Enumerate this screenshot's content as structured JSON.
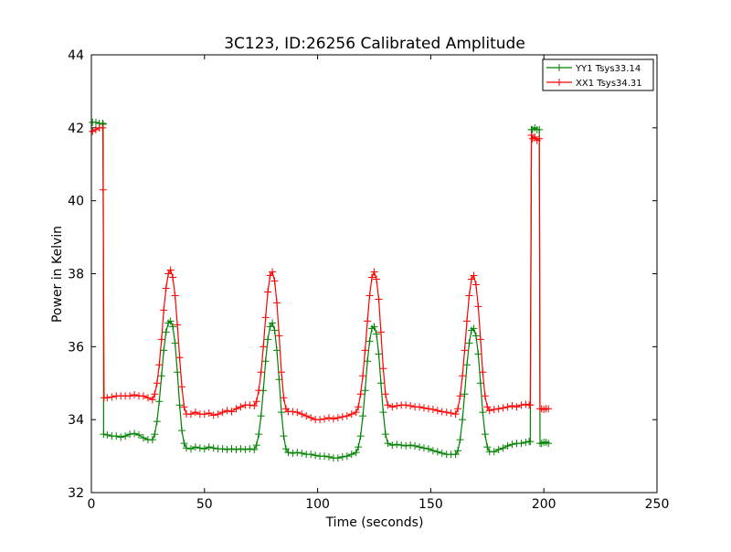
{
  "chart_data": {
    "type": "line",
    "title": "3C123, ID:26256 Calibrated Amplitude",
    "xlabel": "Time (seconds)",
    "ylabel": "Power in Kelvin",
    "xlim": [
      0,
      250
    ],
    "ylim": [
      32,
      44
    ],
    "xticks": [
      0,
      50,
      100,
      150,
      200,
      250
    ],
    "yticks": [
      32,
      34,
      36,
      38,
      40,
      42,
      44
    ],
    "grid": false,
    "legend_position": "top-right",
    "marker": "plus",
    "series": [
      {
        "name": "YY1 Tsys33.14",
        "color": "#008000",
        "points": [
          [
            0.5,
            42.15
          ],
          [
            2,
            42.15
          ],
          [
            3.5,
            42.12
          ],
          [
            5,
            42.12
          ],
          [
            5.2,
            42.1
          ],
          [
            5.4,
            33.6
          ],
          [
            7,
            33.58
          ],
          [
            9,
            33.55
          ],
          [
            11,
            33.55
          ],
          [
            13,
            33.52
          ],
          [
            15,
            33.55
          ],
          [
            17,
            33.6
          ],
          [
            19,
            33.62
          ],
          [
            21,
            33.58
          ],
          [
            23,
            33.5
          ],
          [
            25,
            33.45
          ],
          [
            27,
            33.45
          ],
          [
            28,
            33.6
          ],
          [
            29,
            33.95
          ],
          [
            30,
            34.5
          ],
          [
            31,
            35.2
          ],
          [
            32,
            35.9
          ],
          [
            33,
            36.4
          ],
          [
            34,
            36.65
          ],
          [
            35,
            36.7
          ],
          [
            36,
            36.55
          ],
          [
            37,
            36.1
          ],
          [
            38,
            35.3
          ],
          [
            39,
            34.4
          ],
          [
            40,
            33.7
          ],
          [
            41,
            33.35
          ],
          [
            42,
            33.22
          ],
          [
            44,
            33.2
          ],
          [
            46,
            33.25
          ],
          [
            48,
            33.22
          ],
          [
            50,
            33.2
          ],
          [
            52,
            33.25
          ],
          [
            54,
            33.22
          ],
          [
            56,
            33.2
          ],
          [
            58,
            33.2
          ],
          [
            60,
            33.18
          ],
          [
            62,
            33.2
          ],
          [
            64,
            33.18
          ],
          [
            66,
            33.2
          ],
          [
            68,
            33.18
          ],
          [
            70,
            33.2
          ],
          [
            72,
            33.18
          ],
          [
            73,
            33.3
          ],
          [
            74,
            33.6
          ],
          [
            75,
            34.1
          ],
          [
            76,
            34.8
          ],
          [
            77,
            35.6
          ],
          [
            78,
            36.2
          ],
          [
            79,
            36.55
          ],
          [
            80,
            36.65
          ],
          [
            81,
            36.45
          ],
          [
            82,
            35.9
          ],
          [
            83,
            35.1
          ],
          [
            84,
            34.2
          ],
          [
            85,
            33.55
          ],
          [
            86,
            33.2
          ],
          [
            87,
            33.1
          ],
          [
            89,
            33.08
          ],
          [
            91,
            33.1
          ],
          [
            93,
            33.08
          ],
          [
            95,
            33.05
          ],
          [
            97,
            33.05
          ],
          [
            99,
            33.02
          ],
          [
            101,
            33.0
          ],
          [
            103,
            33.0
          ],
          [
            105,
            32.98
          ],
          [
            107,
            32.95
          ],
          [
            109,
            32.95
          ],
          [
            111,
            32.98
          ],
          [
            113,
            33.0
          ],
          [
            115,
            33.05
          ],
          [
            117,
            33.1
          ],
          [
            118,
            33.25
          ],
          [
            119,
            33.55
          ],
          [
            120,
            34.1
          ],
          [
            121,
            34.8
          ],
          [
            122,
            35.6
          ],
          [
            123,
            36.15
          ],
          [
            124,
            36.5
          ],
          [
            125,
            36.55
          ],
          [
            126,
            36.35
          ],
          [
            127,
            35.8
          ],
          [
            128,
            35.0
          ],
          [
            129,
            34.2
          ],
          [
            130,
            33.6
          ],
          [
            131,
            33.35
          ],
          [
            133,
            33.3
          ],
          [
            135,
            33.32
          ],
          [
            137,
            33.3
          ],
          [
            139,
            33.28
          ],
          [
            141,
            33.3
          ],
          [
            143,
            33.28
          ],
          [
            145,
            33.25
          ],
          [
            147,
            33.22
          ],
          [
            149,
            33.2
          ],
          [
            151,
            33.15
          ],
          [
            153,
            33.12
          ],
          [
            155,
            33.08
          ],
          [
            157,
            33.05
          ],
          [
            159,
            33.05
          ],
          [
            161,
            33.05
          ],
          [
            162,
            33.15
          ],
          [
            163,
            33.45
          ],
          [
            164,
            34.0
          ],
          [
            165,
            34.7
          ],
          [
            166,
            35.5
          ],
          [
            167,
            36.1
          ],
          [
            168,
            36.45
          ],
          [
            169,
            36.5
          ],
          [
            170,
            36.3
          ],
          [
            171,
            35.8
          ],
          [
            172,
            35.0
          ],
          [
            173,
            34.2
          ],
          [
            174,
            33.6
          ],
          [
            175,
            33.25
          ],
          [
            176,
            33.12
          ],
          [
            178,
            33.12
          ],
          [
            180,
            33.18
          ],
          [
            182,
            33.22
          ],
          [
            184,
            33.28
          ],
          [
            186,
            33.32
          ],
          [
            188,
            33.35
          ],
          [
            190,
            33.35
          ],
          [
            192,
            33.38
          ],
          [
            193.5,
            33.4
          ],
          [
            194,
            33.4
          ],
          [
            194.5,
            41.95
          ],
          [
            195,
            41.95
          ],
          [
            196,
            42.0
          ],
          [
            197,
            41.95
          ],
          [
            198,
            41.95
          ],
          [
            198.3,
            33.35
          ],
          [
            199,
            33.35
          ],
          [
            200,
            33.38
          ],
          [
            201,
            33.38
          ],
          [
            202,
            33.35
          ]
        ]
      },
      {
        "name": "XX1 Tsys34.31",
        "color": "#ff0000",
        "points": [
          [
            0.5,
            41.9
          ],
          [
            2,
            41.95
          ],
          [
            3.5,
            42.0
          ],
          [
            5,
            42.0
          ],
          [
            5.2,
            40.3
          ],
          [
            5.6,
            34.6
          ],
          [
            7,
            34.6
          ],
          [
            9,
            34.62
          ],
          [
            11,
            34.65
          ],
          [
            13,
            34.65
          ],
          [
            15,
            34.65
          ],
          [
            17,
            34.65
          ],
          [
            19,
            34.68
          ],
          [
            21,
            34.65
          ],
          [
            23,
            34.65
          ],
          [
            25,
            34.6
          ],
          [
            27,
            34.55
          ],
          [
            28,
            34.7
          ],
          [
            29,
            35.0
          ],
          [
            30,
            35.5
          ],
          [
            31,
            36.2
          ],
          [
            32,
            37.0
          ],
          [
            33,
            37.6
          ],
          [
            34,
            38.0
          ],
          [
            35,
            38.1
          ],
          [
            36,
            37.9
          ],
          [
            37,
            37.4
          ],
          [
            38,
            36.6
          ],
          [
            39,
            35.7
          ],
          [
            40,
            34.9
          ],
          [
            41,
            34.35
          ],
          [
            42,
            34.15
          ],
          [
            44,
            34.15
          ],
          [
            46,
            34.2
          ],
          [
            48,
            34.15
          ],
          [
            50,
            34.15
          ],
          [
            52,
            34.18
          ],
          [
            54,
            34.12
          ],
          [
            56,
            34.15
          ],
          [
            58,
            34.2
          ],
          [
            60,
            34.25
          ],
          [
            62,
            34.22
          ],
          [
            64,
            34.3
          ],
          [
            66,
            34.35
          ],
          [
            68,
            34.4
          ],
          [
            70,
            34.4
          ],
          [
            72,
            34.38
          ],
          [
            73,
            34.5
          ],
          [
            74,
            34.8
          ],
          [
            75,
            35.3
          ],
          [
            76,
            36.0
          ],
          [
            77,
            36.8
          ],
          [
            78,
            37.5
          ],
          [
            79,
            37.95
          ],
          [
            80,
            38.05
          ],
          [
            81,
            37.8
          ],
          [
            82,
            37.2
          ],
          [
            83,
            36.3
          ],
          [
            84,
            35.3
          ],
          [
            85,
            34.6
          ],
          [
            86,
            34.3
          ],
          [
            87,
            34.22
          ],
          [
            89,
            34.22
          ],
          [
            91,
            34.2
          ],
          [
            93,
            34.15
          ],
          [
            95,
            34.1
          ],
          [
            97,
            34.05
          ],
          [
            99,
            34.0
          ],
          [
            101,
            34.0
          ],
          [
            103,
            34.02
          ],
          [
            105,
            34.05
          ],
          [
            107,
            34.02
          ],
          [
            109,
            34.05
          ],
          [
            111,
            34.08
          ],
          [
            113,
            34.1
          ],
          [
            115,
            34.15
          ],
          [
            117,
            34.2
          ],
          [
            118,
            34.35
          ],
          [
            119,
            34.7
          ],
          [
            120,
            35.2
          ],
          [
            121,
            35.9
          ],
          [
            122,
            36.7
          ],
          [
            123,
            37.4
          ],
          [
            124,
            37.9
          ],
          [
            125,
            38.05
          ],
          [
            126,
            37.85
          ],
          [
            127,
            37.3
          ],
          [
            128,
            36.4
          ],
          [
            129,
            35.4
          ],
          [
            130,
            34.7
          ],
          [
            131,
            34.4
          ],
          [
            133,
            34.35
          ],
          [
            135,
            34.38
          ],
          [
            137,
            34.4
          ],
          [
            139,
            34.4
          ],
          [
            141,
            34.38
          ],
          [
            143,
            34.35
          ],
          [
            145,
            34.35
          ],
          [
            147,
            34.32
          ],
          [
            149,
            34.3
          ],
          [
            151,
            34.28
          ],
          [
            153,
            34.25
          ],
          [
            155,
            34.22
          ],
          [
            157,
            34.2
          ],
          [
            159,
            34.18
          ],
          [
            161,
            34.15
          ],
          [
            162,
            34.3
          ],
          [
            163,
            34.65
          ],
          [
            164,
            35.2
          ],
          [
            165,
            35.9
          ],
          [
            166,
            36.7
          ],
          [
            167,
            37.4
          ],
          [
            168,
            37.85
          ],
          [
            169,
            37.95
          ],
          [
            170,
            37.7
          ],
          [
            171,
            37.1
          ],
          [
            172,
            36.2
          ],
          [
            173,
            35.3
          ],
          [
            174,
            34.65
          ],
          [
            175,
            34.35
          ],
          [
            176,
            34.25
          ],
          [
            178,
            34.28
          ],
          [
            180,
            34.3
          ],
          [
            182,
            34.32
          ],
          [
            184,
            34.35
          ],
          [
            186,
            34.38
          ],
          [
            188,
            34.35
          ],
          [
            190,
            34.4
          ],
          [
            192,
            34.42
          ],
          [
            193.5,
            34.4
          ],
          [
            194,
            34.4
          ],
          [
            194.5,
            41.8
          ],
          [
            195,
            41.7
          ],
          [
            196,
            41.75
          ],
          [
            197,
            41.65
          ],
          [
            198,
            41.7
          ],
          [
            198.3,
            34.3
          ],
          [
            199,
            34.3
          ],
          [
            200,
            34.28
          ],
          [
            201,
            34.3
          ],
          [
            202,
            34.3
          ]
        ]
      }
    ]
  }
}
